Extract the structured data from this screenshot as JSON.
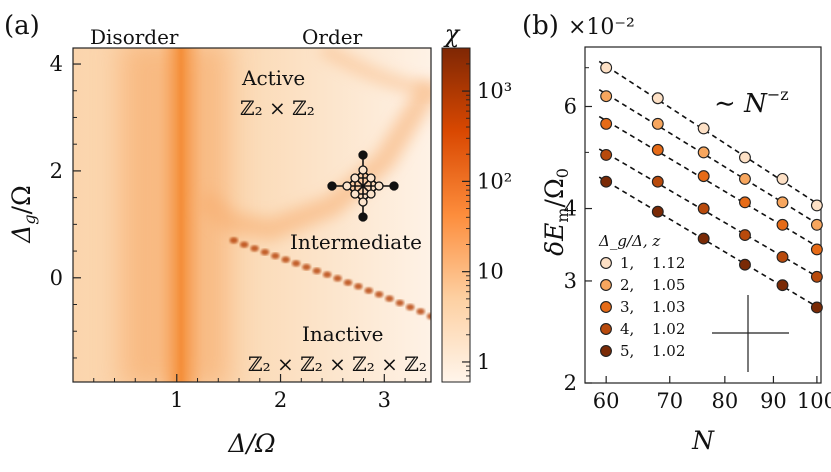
{
  "chart_data": [
    {
      "panel": "(a)",
      "type": "heatmap",
      "xlabel": "Δ/Ω",
      "ylabel": "Δ_g/Ω",
      "xlim": [
        0,
        3.45
      ],
      "ylim": [
        -1.95,
        4.3
      ],
      "xticks": [
        1,
        2,
        3
      ],
      "yticks": [
        0,
        2,
        4
      ],
      "colorbar": {
        "label": "χ",
        "scale": "log",
        "range": [
          0.6,
          3000
        ],
        "ticks": [
          {
            "value": 1,
            "label": "1"
          },
          {
            "value": 10,
            "label": "10"
          },
          {
            "value": 100,
            "label": "10²"
          },
          {
            "value": 1000,
            "label": "10³"
          }
        ]
      },
      "regions": {
        "disorder": "Disorder",
        "order": "Order",
        "active": "Active",
        "active_symmetry": "ℤ₂ × ℤ₂",
        "intermediate": "Intermediate",
        "inactive": "Inactive",
        "inactive_symmetry": "ℤ₂ × ℤ₂ × ℤ₂ × ℤ₂"
      },
      "critical_line_x": 1.1,
      "dotted_transition": [
        [
          1.55,
          0.7
        ],
        [
          1.65,
          0.62
        ],
        [
          1.75,
          0.55
        ],
        [
          1.85,
          0.48
        ],
        [
          1.95,
          0.41
        ],
        [
          2.05,
          0.34
        ],
        [
          2.15,
          0.27
        ],
        [
          2.25,
          0.2
        ],
        [
          2.35,
          0.13
        ],
        [
          2.45,
          0.06
        ],
        [
          2.55,
          -0.01
        ],
        [
          2.65,
          -0.09
        ],
        [
          2.75,
          -0.16
        ],
        [
          2.85,
          -0.24
        ],
        [
          2.95,
          -0.31
        ],
        [
          3.05,
          -0.39
        ],
        [
          3.15,
          -0.47
        ],
        [
          3.25,
          -0.55
        ],
        [
          3.35,
          -0.63
        ],
        [
          3.45,
          -0.72
        ]
      ],
      "order_boundary": [
        [
          1.25,
          1.5
        ],
        [
          1.5,
          1.05
        ],
        [
          1.9,
          0.9
        ],
        [
          2.5,
          1.35
        ],
        [
          3.0,
          2.2
        ],
        [
          3.45,
          3.6
        ]
      ],
      "inset_icon": "lattice-graph"
    },
    {
      "panel": "(b)",
      "type": "scatter",
      "xlabel": "N",
      "ylabel": "δE_m/Ω_0",
      "multiplier": "×10⁻²",
      "xscale": "log",
      "yscale": "log",
      "xlim": [
        57,
        101
      ],
      "ylim": [
        2.0,
        7.6
      ],
      "xticks": [
        60,
        70,
        80,
        90,
        100
      ],
      "yticks": [
        2,
        3,
        4,
        6
      ],
      "annotation": "∼ N^(−z)",
      "legend_title": "Δ_g/Δ,  z",
      "x": [
        60,
        68,
        76,
        84,
        92,
        100
      ],
      "series": [
        {
          "name": "1",
          "z": "1.12",
          "color": "#fde0c5",
          "values": [
            7.0,
            6.2,
            5.5,
            4.9,
            4.5,
            4.05
          ]
        },
        {
          "name": "2",
          "z": "1.05",
          "color": "#f7a65e",
          "values": [
            6.25,
            5.6,
            5.0,
            4.5,
            4.1,
            3.75
          ]
        },
        {
          "name": "3",
          "z": "1.03",
          "color": "#e66b17",
          "values": [
            5.6,
            5.05,
            4.55,
            4.1,
            3.75,
            3.4
          ]
        },
        {
          "name": "4",
          "z": "1.02",
          "color": "#b84a0c",
          "values": [
            4.95,
            4.45,
            4.0,
            3.6,
            3.3,
            3.05
          ]
        },
        {
          "name": "5",
          "z": "1.02",
          "color": "#7a2a06",
          "values": [
            4.45,
            3.95,
            3.55,
            3.2,
            2.95,
            2.7
          ]
        }
      ]
    }
  ]
}
